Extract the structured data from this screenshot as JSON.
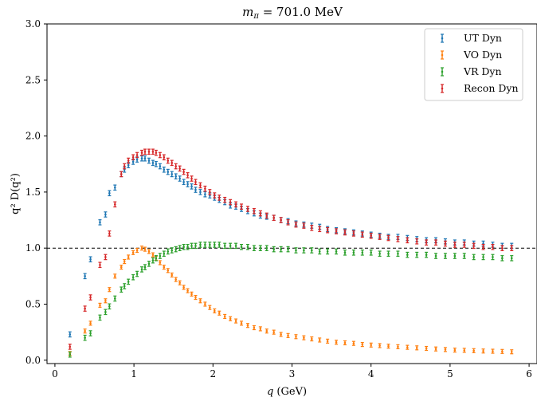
{
  "chart_data": {
    "type": "scatter",
    "title_main": "m",
    "title_sub": "π",
    "title_rest": " = 701.0 MeV",
    "xlabel_var": "q",
    "xlabel_unit": " (GeV)",
    "ylabel": "q² D(q²)",
    "xlim": [
      -0.1,
      6.1
    ],
    "ylim": [
      -0.03,
      3.0
    ],
    "xticks": [
      0,
      1,
      2,
      3,
      4,
      5,
      6
    ],
    "yticks": [
      "0.0",
      "0.5",
      "1.0",
      "1.5",
      "2.0",
      "2.5",
      "3.0"
    ],
    "reference_line_y": 1.0,
    "legend_position": "top-right",
    "x": [
      0.19,
      0.38,
      0.45,
      0.57,
      0.64,
      0.69,
      0.76,
      0.84,
      0.88,
      0.93,
      0.99,
      1.04,
      1.1,
      1.14,
      1.19,
      1.24,
      1.28,
      1.33,
      1.38,
      1.43,
      1.48,
      1.53,
      1.58,
      1.63,
      1.68,
      1.73,
      1.78,
      1.84,
      1.9,
      1.96,
      2.02,
      2.08,
      2.15,
      2.22,
      2.29,
      2.36,
      2.44,
      2.52,
      2.6,
      2.68,
      2.77,
      2.86,
      2.95,
      3.05,
      3.15,
      3.25,
      3.35,
      3.45,
      3.56,
      3.67,
      3.78,
      3.89,
      4.0,
      4.11,
      4.22,
      4.34,
      4.46,
      4.58,
      4.7,
      4.82,
      4.94,
      5.06,
      5.18,
      5.3,
      5.42,
      5.54,
      5.66,
      5.78
    ],
    "series": [
      {
        "name": "UT Dyn",
        "color": "#1f77b4",
        "values": [
          0.23,
          0.75,
          0.9,
          1.23,
          1.3,
          1.49,
          1.54,
          1.66,
          1.7,
          1.74,
          1.77,
          1.79,
          1.8,
          1.8,
          1.78,
          1.76,
          1.75,
          1.73,
          1.7,
          1.68,
          1.66,
          1.64,
          1.62,
          1.59,
          1.57,
          1.55,
          1.52,
          1.5,
          1.48,
          1.47,
          1.45,
          1.43,
          1.41,
          1.38,
          1.37,
          1.35,
          1.33,
          1.31,
          1.29,
          1.28,
          1.27,
          1.25,
          1.24,
          1.22,
          1.21,
          1.2,
          1.19,
          1.17,
          1.16,
          1.15,
          1.14,
          1.13,
          1.12,
          1.11,
          1.1,
          1.1,
          1.09,
          1.08,
          1.07,
          1.07,
          1.06,
          1.05,
          1.05,
          1.04,
          1.04,
          1.03,
          1.02,
          1.02
        ]
      },
      {
        "name": "VO Dyn",
        "color": "#ff7f0e",
        "values": [
          0.06,
          0.26,
          0.33,
          0.49,
          0.53,
          0.63,
          0.75,
          0.83,
          0.88,
          0.92,
          0.96,
          0.98,
          1.0,
          0.99,
          0.97,
          0.94,
          0.91,
          0.87,
          0.83,
          0.8,
          0.76,
          0.72,
          0.69,
          0.65,
          0.62,
          0.59,
          0.56,
          0.53,
          0.5,
          0.47,
          0.44,
          0.42,
          0.39,
          0.37,
          0.35,
          0.33,
          0.31,
          0.29,
          0.28,
          0.26,
          0.25,
          0.23,
          0.22,
          0.21,
          0.2,
          0.19,
          0.18,
          0.17,
          0.16,
          0.155,
          0.15,
          0.14,
          0.135,
          0.13,
          0.125,
          0.12,
          0.115,
          0.11,
          0.105,
          0.1,
          0.095,
          0.09,
          0.088,
          0.085,
          0.082,
          0.08,
          0.078,
          0.075
        ]
      },
      {
        "name": "VR Dyn",
        "color": "#2ca02c",
        "values": [
          0.05,
          0.2,
          0.24,
          0.38,
          0.43,
          0.48,
          0.55,
          0.63,
          0.66,
          0.7,
          0.74,
          0.77,
          0.81,
          0.83,
          0.86,
          0.89,
          0.91,
          0.93,
          0.95,
          0.97,
          0.98,
          0.99,
          1.0,
          1.01,
          1.01,
          1.02,
          1.02,
          1.03,
          1.03,
          1.03,
          1.03,
          1.03,
          1.02,
          1.02,
          1.02,
          1.01,
          1.01,
          1.0,
          1.0,
          1.0,
          0.99,
          0.99,
          0.99,
          0.98,
          0.98,
          0.98,
          0.97,
          0.97,
          0.97,
          0.96,
          0.96,
          0.96,
          0.96,
          0.95,
          0.95,
          0.95,
          0.94,
          0.94,
          0.94,
          0.93,
          0.93,
          0.93,
          0.93,
          0.92,
          0.92,
          0.92,
          0.91,
          0.91
        ]
      },
      {
        "name": "Recon Dyn",
        "color": "#d62728",
        "values": [
          0.12,
          0.46,
          0.56,
          0.85,
          0.92,
          1.13,
          1.39,
          1.66,
          1.73,
          1.78,
          1.81,
          1.83,
          1.85,
          1.86,
          1.86,
          1.86,
          1.85,
          1.83,
          1.81,
          1.78,
          1.76,
          1.73,
          1.71,
          1.68,
          1.65,
          1.62,
          1.59,
          1.56,
          1.53,
          1.5,
          1.47,
          1.45,
          1.43,
          1.41,
          1.39,
          1.37,
          1.35,
          1.33,
          1.31,
          1.29,
          1.27,
          1.25,
          1.23,
          1.21,
          1.2,
          1.18,
          1.17,
          1.16,
          1.15,
          1.14,
          1.13,
          1.12,
          1.11,
          1.1,
          1.09,
          1.08,
          1.07,
          1.06,
          1.05,
          1.05,
          1.04,
          1.03,
          1.03,
          1.02,
          1.01,
          1.01,
          1.0,
          1.0
        ]
      }
    ]
  }
}
